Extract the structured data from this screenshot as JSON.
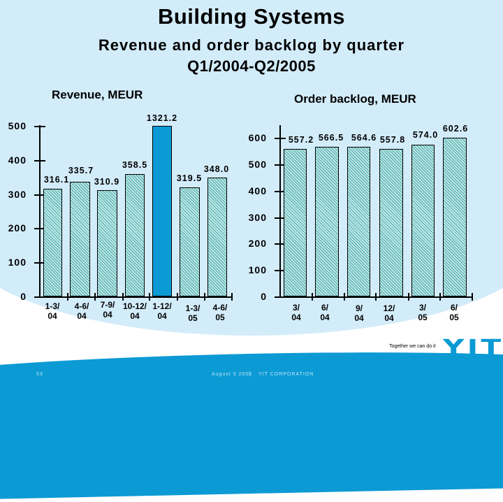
{
  "title": "Building Systems",
  "subtitle_line1": "Revenue and order backlog by quarter",
  "subtitle_line2": "Q1/2004-Q2/2005",
  "colors": {
    "background": "#d3ecfa",
    "bar_hatch": "#7fd0cf",
    "highlight_bar": "#0b9ad4",
    "brand_blue": "#0b9ad4"
  },
  "chart_data": [
    {
      "type": "bar",
      "title": "Revenue, MEUR",
      "xlabel": "",
      "ylabel": "MEUR",
      "ylim": [
        0,
        500
      ],
      "yticks": [
        "0",
        "100",
        "200",
        "300",
        "400",
        "500"
      ],
      "categories": [
        "1-3/ 04",
        "4-6/ 04",
        "7-9/ 04",
        "10-12/ 04",
        "1-12/ 04",
        "1-3/ 05",
        "4-6/ 05"
      ],
      "category_lines": [
        [
          "1-3/",
          "04"
        ],
        [
          "4-6/",
          "04"
        ],
        [
          "7-9/",
          "04"
        ],
        [
          "10-12/",
          "04"
        ],
        [
          "1-12/",
          "04"
        ],
        [
          "1-3/",
          "05"
        ],
        [
          "4-6/",
          "05"
        ]
      ],
      "values": [
        316.1,
        335.7,
        310.9,
        358.5,
        1321.2,
        319.5,
        348.0
      ],
      "value_labels": [
        "316.1",
        "335.7",
        "310.9",
        "358.5",
        "1321.2",
        "319.5",
        "348.0"
      ],
      "annotations": [
        "1-12/04 bar highlighted in solid blue and clipped at axis max"
      ],
      "grid": false,
      "legend": null
    },
    {
      "type": "bar",
      "title": "Order backlog, MEUR",
      "xlabel": "",
      "ylabel": "MEUR",
      "ylim": [
        0,
        600
      ],
      "yticks": [
        "0",
        "100",
        "200",
        "300",
        "400",
        "500",
        "600"
      ],
      "categories": [
        "3/ 04",
        "6/ 04",
        "9/ 04",
        "12/ 04",
        "3/ 05",
        "6/ 05"
      ],
      "category_lines": [
        [
          "3/",
          "04"
        ],
        [
          "6/",
          "04"
        ],
        [
          "9/",
          "04"
        ],
        [
          "12/",
          "04"
        ],
        [
          "3/",
          "05"
        ],
        [
          "6/",
          "05"
        ]
      ],
      "values": [
        557.2,
        566.5,
        564.6,
        557.8,
        574.0,
        602.6
      ],
      "value_labels": [
        "557.2",
        "566.5",
        "564.6",
        "557.8",
        "574.0",
        "602.6"
      ],
      "grid": false,
      "legend": null
    }
  ],
  "footer": {
    "tagline": "Together we can do it",
    "logo": "YIT",
    "page_number": "53",
    "date": "August 5 2005",
    "separator": "|",
    "company": "YIT CORPORATION"
  }
}
